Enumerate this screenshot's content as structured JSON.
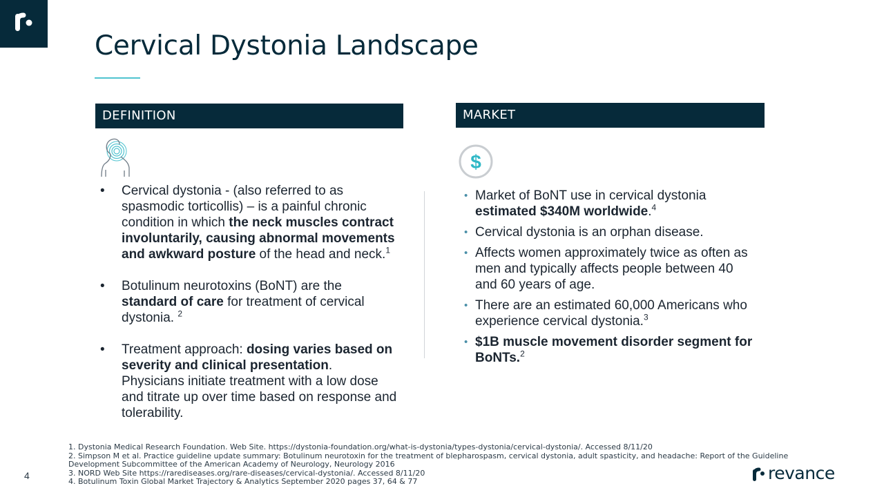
{
  "title": "Cervical Dystonia Landscape",
  "colors": {
    "navy": "#062a3a",
    "teal": "#4fc3cf",
    "bullet_blue": "#4a8fa8"
  },
  "definition": {
    "header": "DEFINITION",
    "icon": "neck-pain-icon",
    "bullets": [
      {
        "t1": "Cervical dystonia - (also referred to as spasmodic torticollis) – is a painful chronic condition in which ",
        "b1": "the neck muscles contract involuntarily, causing abnormal movements and awkward posture",
        "t2": " of the head and neck.",
        "sup": "1"
      },
      {
        "t1": "Botulinum neurotoxins (BoNT) are the ",
        "b1": "standard of care",
        "t2": " for treatment of cervical dystonia. ",
        "sup": "2"
      },
      {
        "t1": "Treatment approach: ",
        "b1": "dosing varies based on severity and clinical presentation",
        "t2": ". Physicians initiate treatment with a low dose and titrate up over time based on response and tolerability."
      }
    ]
  },
  "market": {
    "header": "MARKET",
    "icon": "dollar-coin-icon",
    "icon_glyph": "$",
    "bullets": [
      {
        "t1": "Market of BoNT use in cervical dystonia ",
        "b1": "estimated $340M worldwide",
        "t2": ".",
        "sup": "4"
      },
      {
        "t1": "Cervical dystonia is an orphan disease."
      },
      {
        "t1": "Affects women approximately twice as often as men and typically affects people between 40 and 60 years of age."
      },
      {
        "t1": "There are an estimated 60,000 Americans who experience cervical dystonia.",
        "sup": "3"
      },
      {
        "b1": "$1B muscle movement disorder segment for BoNTs.",
        "sup": "2"
      }
    ]
  },
  "footnotes": [
    "1. Dystonia Medical Research Foundation. Web Site. https://dystonia-foundation.org/what-is-dystonia/types-dystonia/cervical-dystonia/. Accessed 8/11/20",
    "2.  Simpson M et al. Practice guideline update summary: Botulinum neurotoxin for the treatment of blepharospasm, cervical dystonia, adult spasticity, and headache: Report of the Guideline Development Subcommittee of the American Academy of Neurology, Neurology 2016",
    "3. NORD Web Site https://rarediseases.org/rare-diseases/cervical-dystonia/. Accessed 8/11/20",
    "4. Botulinum Toxin Global Market Trajectory & Analytics September 2020 pages 37, 64 & 77"
  ],
  "page_number": "4",
  "brand": {
    "name": "revance",
    "icon": "revance-logo-icon"
  }
}
